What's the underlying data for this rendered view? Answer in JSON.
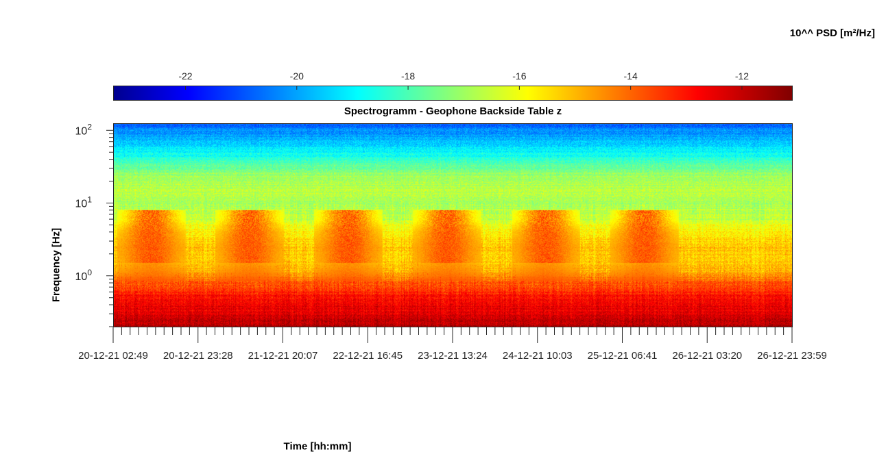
{
  "chart_data": {
    "type": "heatmap",
    "title": "Spectrogramm - Geophone Backside Table z",
    "xlabel": "Time [hh:mm]",
    "ylabel": "Frequency [Hz]",
    "y_scale": "log",
    "ylim": [
      0.2,
      125
    ],
    "y_ticks": [
      {
        "value": 1,
        "base": "10",
        "exp": "0"
      },
      {
        "value": 10,
        "base": "10",
        "exp": "1"
      },
      {
        "value": 100,
        "base": "10",
        "exp": "2"
      }
    ],
    "x_ticks": [
      "20-12-21  02:49",
      "20-12-21  23:28",
      "21-12-21  20:07",
      "22-12-21  16:45",
      "23-12-21  13:24",
      "24-12-21  10:03",
      "25-12-21  06:41",
      "26-12-21  03:20",
      "26-12-21  23:59"
    ],
    "colorbar": {
      "label": "10^^ PSD [m²/Hz]",
      "colormap": "jet",
      "range": [
        -23.3,
        -11.1
      ],
      "ticks": [
        -22,
        -20,
        -18,
        -16,
        -14,
        -12
      ],
      "tick_labels": [
        "-22",
        "-20",
        "-18",
        "-16",
        "-14",
        "-12"
      ]
    },
    "psd_profile_by_frequency": {
      "frequency_hz": [
        0.2,
        0.3,
        0.5,
        0.8,
        1.0,
        1.5,
        2.5,
        4.0,
        6.0,
        10,
        15,
        20,
        25,
        30,
        40,
        60,
        100,
        125
      ],
      "log10_psd": [
        -11.8,
        -12.4,
        -12.9,
        -13.9,
        -14.6,
        -15.3,
        -15.2,
        -15.6,
        -16.6,
        -16.8,
        -16.6,
        -16.9,
        -17.0,
        -17.6,
        -18.4,
        -19.3,
        -20.3,
        -20.8
      ]
    },
    "daytime_activity_bursts": {
      "center_time": [
        "20-12-21 12:00",
        "21-12-21 12:00",
        "22-12-21 12:00",
        "23-12-21 12:00",
        "24-12-21 12:00",
        "25-12-21 12:00"
      ],
      "frequency_band_hz": [
        1.5,
        8
      ],
      "log10_psd_peak": -13.6
    }
  }
}
